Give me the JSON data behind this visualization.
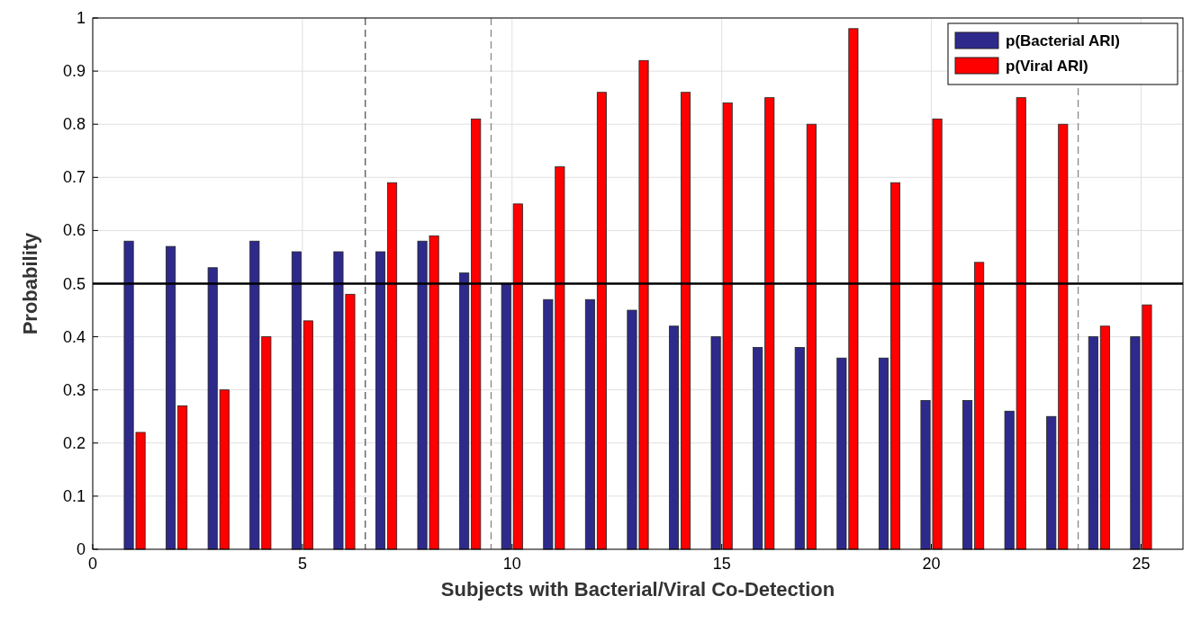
{
  "chart_data": {
    "type": "bar",
    "xlabel": "Subjects with Bacterial/Viral Co-Detection",
    "ylabel": "Probability",
    "x": [
      1,
      2,
      3,
      4,
      5,
      6,
      7,
      8,
      9,
      10,
      11,
      12,
      13,
      14,
      15,
      16,
      17,
      18,
      19,
      20,
      21,
      22,
      23,
      24,
      25
    ],
    "series": [
      {
        "name": "p(Bacterial ARI)",
        "color": "#2e2a8c",
        "values": [
          0.58,
          0.57,
          0.53,
          0.58,
          0.56,
          0.56,
          0.56,
          0.58,
          0.52,
          0.5,
          0.47,
          0.47,
          0.45,
          0.42,
          0.4,
          0.38,
          0.38,
          0.36,
          0.36,
          0.28,
          0.28,
          0.26,
          0.25,
          0.4,
          0.4
        ]
      },
      {
        "name": "p(Viral ARI)",
        "color": "#ff0000",
        "values": [
          0.22,
          0.27,
          0.3,
          0.4,
          0.43,
          0.48,
          0.69,
          0.59,
          0.81,
          0.65,
          0.72,
          0.86,
          0.92,
          0.86,
          0.84,
          0.85,
          0.8,
          0.98,
          0.69,
          0.81,
          0.54,
          0.85,
          0.8,
          0.42,
          0.46
        ]
      }
    ],
    "xlim": [
      0,
      26
    ],
    "xticks": [
      0,
      5,
      10,
      15,
      20,
      25
    ],
    "ylim": [
      0,
      1
    ],
    "yticks": [
      0,
      0.1,
      0.2,
      0.3,
      0.4,
      0.5,
      0.6,
      0.7,
      0.8,
      0.9,
      1
    ],
    "ref_lines": [
      {
        "axis": "y",
        "value": 0.5,
        "color": "#000000",
        "line_style": "solid"
      },
      {
        "axis": "x",
        "value": 6.5,
        "color": "#555555",
        "line_style": "dashed"
      },
      {
        "axis": "x",
        "value": 9.5,
        "color": "#888888",
        "line_style": "dashed"
      },
      {
        "axis": "x",
        "value": 23.5,
        "color": "#888888",
        "line_style": "dashed"
      }
    ],
    "grid": true,
    "legend": "top right"
  }
}
